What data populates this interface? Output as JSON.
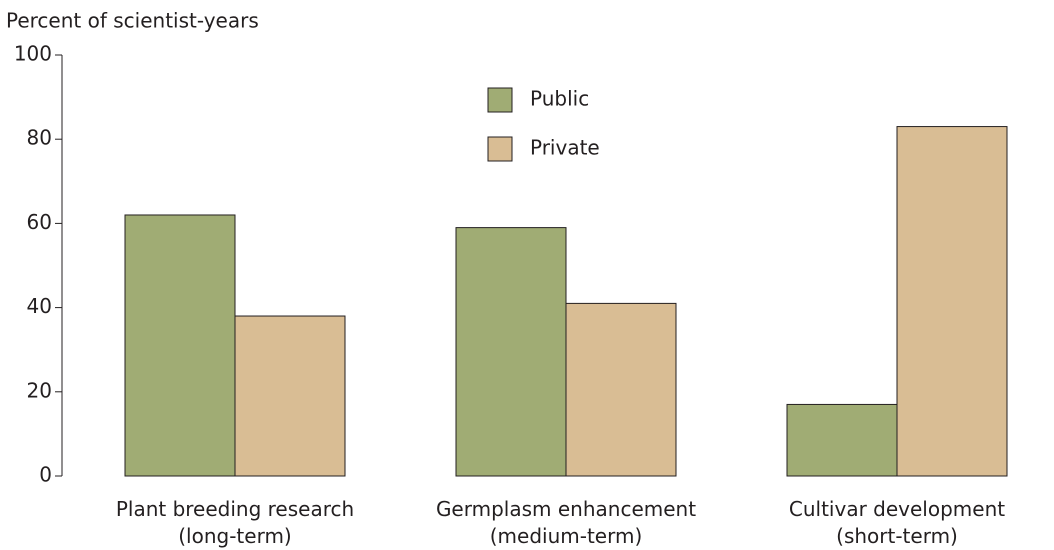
{
  "chart_data": {
    "type": "bar",
    "y_axis_label": "Percent of scientist-years",
    "categories": [
      "Plant breeding research\n(long-term)",
      "Germplasm enhancement\n(medium-term)",
      "Cultivar development\n(short-term)"
    ],
    "series": [
      {
        "name": "Public",
        "color": "#a0ac74",
        "values": [
          62,
          59,
          17
        ]
      },
      {
        "name": "Private",
        "color": "#d9bd94",
        "values": [
          38,
          41,
          83
        ]
      }
    ],
    "ylim": [
      0,
      100
    ],
    "yticks": [
      0,
      20,
      40,
      60,
      80,
      100
    ],
    "grid": false,
    "legend": "top"
  }
}
